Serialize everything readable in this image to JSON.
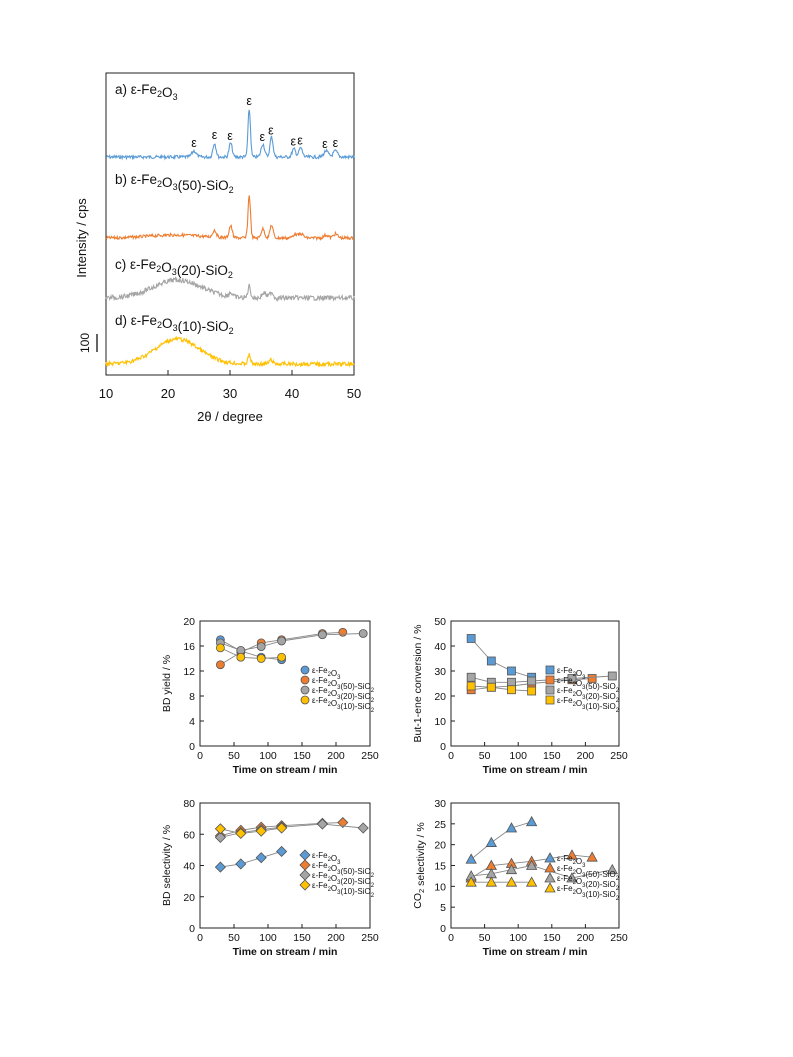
{
  "xrd": {
    "xlabel": "2θ / degree",
    "ylabel": "Intensity / cps",
    "scale_bar_label": "100",
    "epsilon_label": "ε",
    "x_ticks": [
      "10",
      "20",
      "30",
      "40",
      "50"
    ],
    "xlim": [
      10,
      50
    ],
    "traces": [
      {
        "name": "a) ε-Fe₂O₃",
        "color": "#5b9bd5",
        "baseline": 157,
        "noise": 1.6,
        "peaks": [
          [
            24.2,
            6,
            0.5
          ],
          [
            27.5,
            14,
            0.35
          ],
          [
            30.1,
            14,
            0.35
          ],
          [
            33.1,
            48,
            0.28
          ],
          [
            35.3,
            13,
            0.4
          ],
          [
            36.7,
            20,
            0.35
          ],
          [
            40.3,
            8,
            0.4
          ],
          [
            41.4,
            9,
            0.4
          ],
          [
            45.5,
            6,
            0.5
          ],
          [
            47.0,
            6,
            0.5
          ]
        ],
        "hump": [
          0,
          21,
          5
        ],
        "epsilons": [
          24.2,
          27.5,
          30.0,
          33.1,
          35.2,
          36.6,
          40.2,
          41.3,
          45.3,
          47.0
        ]
      },
      {
        "name": "b) ε-Fe₂O₃(50)-SiO₂",
        "color": "#ed7d31",
        "baseline": 238,
        "noise": 1.5,
        "peaks": [
          [
            27.5,
            7,
            0.4
          ],
          [
            30.1,
            12,
            0.35
          ],
          [
            33.1,
            43,
            0.28
          ],
          [
            35.3,
            9,
            0.4
          ],
          [
            36.7,
            13,
            0.35
          ],
          [
            40.5,
            4,
            0.5
          ],
          [
            41.5,
            4,
            0.5
          ],
          [
            45.5,
            3,
            0.5
          ],
          [
            47.0,
            4,
            0.5
          ]
        ],
        "hump": [
          3,
          21,
          6
        ],
        "epsilons": []
      },
      {
        "name": "c) ε-Fe₂O₃(20)-SiO₂",
        "color": "#a5a5a5",
        "baseline": 298,
        "noise": 2.4,
        "peaks": [
          [
            30.1,
            4,
            0.4
          ],
          [
            33.1,
            12,
            0.3
          ],
          [
            35.5,
            5,
            0.5
          ],
          [
            36.7,
            6,
            0.4
          ]
        ],
        "hump": [
          18,
          21.5,
          5.5
        ],
        "epsilons": []
      },
      {
        "name": "d) ε-Fe₂O₃(10)-SiO₂",
        "color": "#ffc000",
        "baseline": 364,
        "noise": 2.0,
        "peaks": [
          [
            33.1,
            9,
            0.3
          ],
          [
            36.6,
            4,
            0.4
          ]
        ],
        "hump": [
          25,
          21.5,
          5
        ],
        "epsilons": []
      }
    ]
  },
  "catalysis": {
    "xlabel": "Time on stream / min",
    "x_ticks": [
      "0",
      "50",
      "100",
      "150",
      "200",
      "250"
    ],
    "xlim": [
      0,
      250
    ],
    "series_names": [
      "ε-Fe₂O₃",
      "ε-Fe₂O₃(50)-SiO₂",
      "ε-Fe₂O₃(20)-SiO₂",
      "ε-Fe₂O₃(10)-SiO₂"
    ],
    "series_colors": [
      "#5b9bd5",
      "#ed7d31",
      "#a5a5a5",
      "#ffc000"
    ],
    "panels": [
      {
        "id": "bd-yield",
        "ylabel": "BD yield / %",
        "ylim": [
          0,
          20
        ],
        "y_ticks": [
          "0",
          "4",
          "8",
          "12",
          "16",
          "20"
        ],
        "marker": "circle",
        "series": [
          {
            "x": [
              30,
              60,
              90,
              120
            ],
            "y": [
              17.0,
              15.2,
              14.2,
              13.8
            ]
          },
          {
            "x": [
              30,
              60,
              90,
              120,
              180,
              210
            ],
            "y": [
              13.0,
              15.0,
              16.5,
              17.0,
              18.0,
              18.2
            ]
          },
          {
            "x": [
              30,
              60,
              90,
              120,
              180,
              240
            ],
            "y": [
              16.5,
              15.3,
              15.9,
              16.8,
              17.8,
              18.0
            ]
          },
          {
            "x": [
              30,
              60,
              90,
              120
            ],
            "y": [
              15.7,
              14.2,
              14.0,
              14.2
            ]
          }
        ]
      },
      {
        "id": "butene-conversion",
        "ylabel": "But-1-ene conversion / %",
        "ylim": [
          0,
          50
        ],
        "y_ticks": [
          "0",
          "10",
          "20",
          "30",
          "40",
          "50"
        ],
        "marker": "square",
        "series": [
          {
            "x": [
              30,
              60,
              90,
              120
            ],
            "y": [
              43.0,
              34.0,
              30.0,
              27.5
            ]
          },
          {
            "x": [
              30,
              60,
              90,
              120,
              180,
              210
            ],
            "y": [
              22.5,
              23.5,
              24.0,
              25.0,
              26.5,
              27.0
            ]
          },
          {
            "x": [
              30,
              60,
              90,
              120,
              180,
              240
            ],
            "y": [
              27.5,
              25.5,
              25.5,
              26.0,
              27.0,
              28.0
            ]
          },
          {
            "x": [
              30,
              60,
              90,
              120
            ],
            "y": [
              24.0,
              23.5,
              22.5,
              22.0
            ]
          }
        ]
      },
      {
        "id": "bd-selectivity",
        "ylabel": "BD selectivity / %",
        "ylim": [
          0,
          80
        ],
        "y_ticks": [
          "0",
          "20",
          "40",
          "60",
          "80"
        ],
        "marker": "diamond",
        "series": [
          {
            "x": [
              30,
              60,
              90,
              120
            ],
            "y": [
              39.0,
              41.0,
              45.0,
              49.0
            ]
          },
          {
            "x": [
              30,
              60,
              90,
              120,
              180,
              210
            ],
            "y": [
              59.0,
              62.5,
              64.5,
              65.5,
              67.0,
              67.5
            ]
          },
          {
            "x": [
              30,
              60,
              90,
              120,
              180,
              240
            ],
            "y": [
              58.0,
              61.0,
              63.0,
              64.5,
              66.5,
              64.0
            ]
          },
          {
            "x": [
              30,
              60,
              90,
              120
            ],
            "y": [
              63.5,
              60.5,
              62.0,
              64.0
            ]
          }
        ]
      },
      {
        "id": "co2-selectivity",
        "ylabel": "CO₂ selectivity / %",
        "ylim": [
          0,
          30
        ],
        "y_ticks": [
          "0",
          "5",
          "10",
          "15",
          "20",
          "25",
          "30"
        ],
        "marker": "triangle",
        "series": [
          {
            "x": [
              30,
              60,
              90,
              120
            ],
            "y": [
              16.5,
              20.5,
              24.0,
              25.5
            ]
          },
          {
            "x": [
              30,
              60,
              90,
              120,
              180,
              210
            ],
            "y": [
              12.0,
              15.0,
              15.5,
              16.0,
              17.5,
              17.0
            ]
          },
          {
            "x": [
              30,
              60,
              90,
              120,
              180,
              240
            ],
            "y": [
              12.5,
              13.0,
              14.0,
              15.0,
              12.0,
              14.0
            ]
          },
          {
            "x": [
              30,
              60,
              90,
              120
            ],
            "y": [
              11.0,
              11.0,
              11.0,
              11.0
            ]
          }
        ]
      }
    ]
  },
  "chart_data": [
    {
      "type": "line",
      "title": "",
      "xlabel": "2θ / degree",
      "ylabel": "Intensity / cps",
      "xlim": [
        10,
        50
      ],
      "series": [
        {
          "name": "a) ε-Fe₂O₃",
          "major_peaks_2theta": [
            27.5,
            30.1,
            33.1,
            35.3,
            36.7,
            40.3,
            41.4,
            45.5,
            47.0
          ]
        },
        {
          "name": "b) ε-Fe₂O₃(50)-SiO₂",
          "major_peaks_2theta": [
            30.1,
            33.1,
            35.3,
            36.7
          ]
        },
        {
          "name": "c) ε-Fe₂O₃(20)-SiO₂",
          "major_peaks_2theta": [
            33.1,
            36.7
          ]
        },
        {
          "name": "d) ε-Fe₂O₃(10)-SiO₂",
          "major_peaks_2theta": [
            33.1
          ]
        }
      ]
    },
    {
      "type": "scatter",
      "xlabel": "Time on stream / min",
      "ylabel": "BD yield / %",
      "ylim": [
        0,
        20
      ],
      "series": [
        {
          "name": "ε-Fe₂O₃",
          "x": [
            30,
            60,
            90,
            120
          ],
          "y": [
            17.0,
            15.2,
            14.2,
            13.8
          ]
        },
        {
          "name": "ε-Fe₂O₃(50)-SiO₂",
          "x": [
            30,
            60,
            90,
            120,
            180,
            210
          ],
          "y": [
            13.0,
            15.0,
            16.5,
            17.0,
            18.0,
            18.2
          ]
        },
        {
          "name": "ε-Fe₂O₃(20)-SiO₂",
          "x": [
            30,
            60,
            90,
            120,
            180,
            240
          ],
          "y": [
            16.5,
            15.3,
            15.9,
            16.8,
            17.8,
            18.0
          ]
        },
        {
          "name": "ε-Fe₂O₃(10)-SiO₂",
          "x": [
            30,
            60,
            90,
            120
          ],
          "y": [
            15.7,
            14.2,
            14.0,
            14.2
          ]
        }
      ]
    },
    {
      "type": "scatter",
      "xlabel": "Time on stream / min",
      "ylabel": "But-1-ene conversion / %",
      "ylim": [
        0,
        50
      ],
      "series": [
        {
          "name": "ε-Fe₂O₃",
          "x": [
            30,
            60,
            90,
            120
          ],
          "y": [
            43.0,
            34.0,
            30.0,
            27.5
          ]
        },
        {
          "name": "ε-Fe₂O₃(50)-SiO₂",
          "x": [
            30,
            60,
            90,
            120,
            180,
            210
          ],
          "y": [
            22.5,
            23.5,
            24.0,
            25.0,
            26.5,
            27.0
          ]
        },
        {
          "name": "ε-Fe₂O₃(20)-SiO₂",
          "x": [
            30,
            60,
            90,
            120,
            180,
            240
          ],
          "y": [
            27.5,
            25.5,
            25.5,
            26.0,
            27.0,
            28.0
          ]
        },
        {
          "name": "ε-Fe₂O₃(10)-SiO₂",
          "x": [
            30,
            60,
            90,
            120
          ],
          "y": [
            24.0,
            23.5,
            22.5,
            22.0
          ]
        }
      ]
    },
    {
      "type": "scatter",
      "xlabel": "Time on stream / min",
      "ylabel": "BD selectivity / %",
      "ylim": [
        0,
        80
      ],
      "series": [
        {
          "name": "ε-Fe₂O₃",
          "x": [
            30,
            60,
            90,
            120
          ],
          "y": [
            39.0,
            41.0,
            45.0,
            49.0
          ]
        },
        {
          "name": "ε-Fe₂O₃(50)-SiO₂",
          "x": [
            30,
            60,
            90,
            120,
            180,
            210
          ],
          "y": [
            59.0,
            62.5,
            64.5,
            65.5,
            67.0,
            67.5
          ]
        },
        {
          "name": "ε-Fe₂O₃(20)-SiO₂",
          "x": [
            30,
            60,
            90,
            120,
            180,
            240
          ],
          "y": [
            58.0,
            61.0,
            63.0,
            64.5,
            66.5,
            64.0
          ]
        },
        {
          "name": "ε-Fe₂O₃(10)-SiO₂",
          "x": [
            30,
            60,
            90,
            120
          ],
          "y": [
            63.5,
            60.5,
            62.0,
            64.0
          ]
        }
      ]
    },
    {
      "type": "scatter",
      "xlabel": "Time on stream / min",
      "ylabel": "CO₂ selectivity / %",
      "ylim": [
        0,
        30
      ],
      "series": [
        {
          "name": "ε-Fe₂O₃",
          "x": [
            30,
            60,
            90,
            120
          ],
          "y": [
            16.5,
            20.5,
            24.0,
            25.5
          ]
        },
        {
          "name": "ε-Fe₂O₃(50)-SiO₂",
          "x": [
            30,
            60,
            90,
            120,
            180,
            210
          ],
          "y": [
            12.0,
            15.0,
            15.5,
            16.0,
            17.5,
            17.0
          ]
        },
        {
          "name": "ε-Fe₂O₃(20)-SiO₂",
          "x": [
            30,
            60,
            90,
            120,
            180,
            240
          ],
          "y": [
            12.5,
            13.0,
            14.0,
            15.0,
            12.0,
            14.0
          ]
        },
        {
          "name": "ε-Fe₂O₃(10)-SiO₂",
          "x": [
            30,
            60,
            90,
            120
          ],
          "y": [
            11.0,
            11.0,
            11.0,
            11.0
          ]
        }
      ]
    }
  ]
}
